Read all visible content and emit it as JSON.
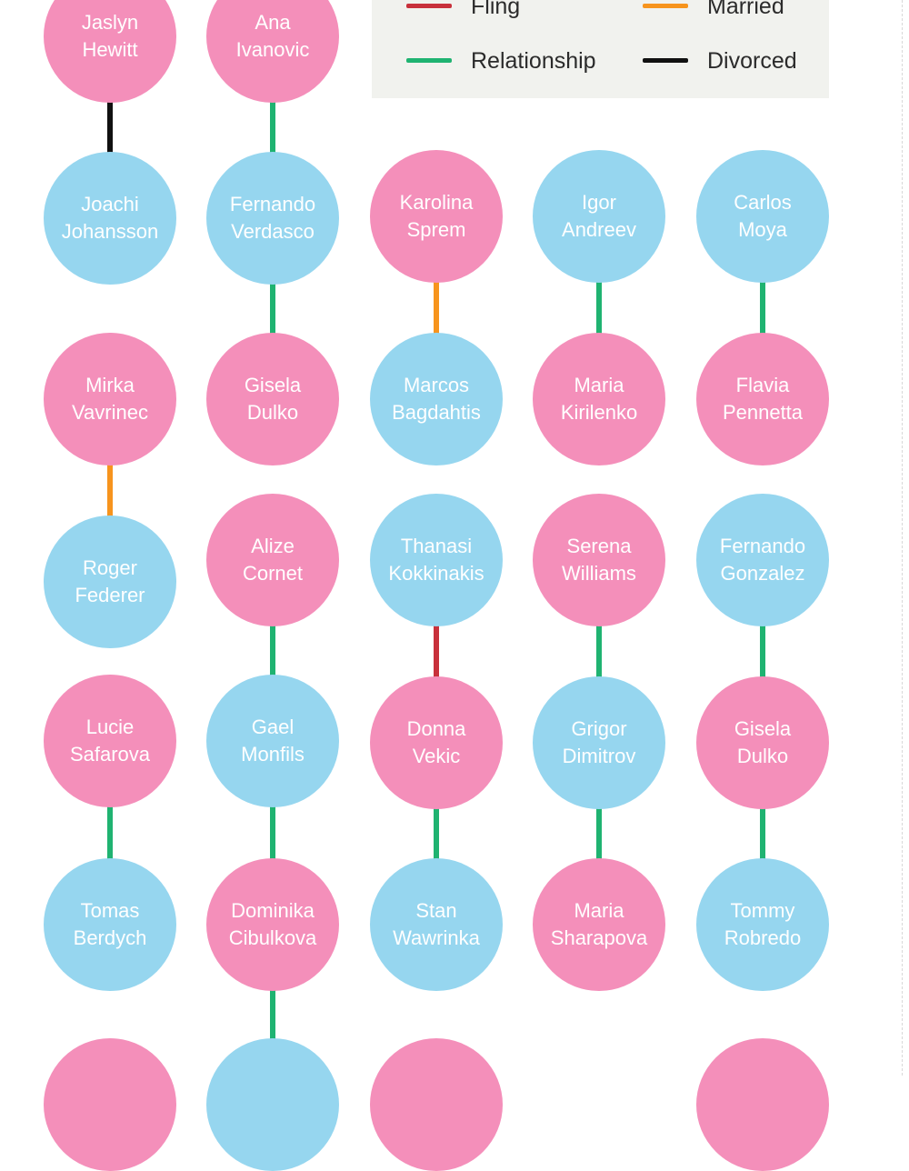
{
  "legend": {
    "items": [
      {
        "label": "Fling",
        "color": "#c8313b"
      },
      {
        "label": "Married",
        "color": "#f7941d"
      },
      {
        "label": "Relationship",
        "color": "#1fb371"
      },
      {
        "label": "Divorced",
        "color": "#111111"
      }
    ]
  },
  "colors": {
    "female": "#f48fba",
    "male": "#96d6ef"
  },
  "nodes": [
    {
      "first": "Jaslyn",
      "last": "Hewitt",
      "gender": "female"
    },
    {
      "first": "Ana",
      "last": "Ivanovic",
      "gender": "female"
    },
    {
      "first": "Joachi",
      "last": "Johansson",
      "gender": "male"
    },
    {
      "first": "Fernando",
      "last": "Verdasco",
      "gender": "male"
    },
    {
      "first": "Karolina",
      "last": "Sprem",
      "gender": "female"
    },
    {
      "first": "Igor",
      "last": "Andreev",
      "gender": "male"
    },
    {
      "first": "Carlos",
      "last": "Moya",
      "gender": "male"
    },
    {
      "first": "Mirka",
      "last": "Vavrinec",
      "gender": "female"
    },
    {
      "first": "Gisela",
      "last": "Dulko",
      "gender": "female"
    },
    {
      "first": "Marcos",
      "last": "Bagdahtis",
      "gender": "male"
    },
    {
      "first": "Maria",
      "last": "Kirilenko",
      "gender": "female"
    },
    {
      "first": "Flavia",
      "last": "Pennetta",
      "gender": "female"
    },
    {
      "first": "Roger",
      "last": "Federer",
      "gender": "male"
    },
    {
      "first": "Alize",
      "last": "Cornet",
      "gender": "female"
    },
    {
      "first": "Thanasi",
      "last": "Kokkinakis",
      "gender": "male"
    },
    {
      "first": "Serena",
      "last": "Williams",
      "gender": "female"
    },
    {
      "first": "Fernando",
      "last": "Gonzalez",
      "gender": "male"
    },
    {
      "first": "Lucie",
      "last": "Safarova",
      "gender": "female"
    },
    {
      "first": "Gael",
      "last": "Monfils",
      "gender": "male"
    },
    {
      "first": "Donna",
      "last": "Vekic",
      "gender": "female"
    },
    {
      "first": "Grigor",
      "last": "Dimitrov",
      "gender": "male"
    },
    {
      "first": "Gisela",
      "last": "Dulko",
      "gender": "female"
    },
    {
      "first": "Tomas",
      "last": "Berdych",
      "gender": "male"
    },
    {
      "first": "Dominika",
      "last": "Cibulkova",
      "gender": "female"
    },
    {
      "first": "Stan",
      "last": "Wawrinka",
      "gender": "male"
    },
    {
      "first": "Maria",
      "last": "Sharapova",
      "gender": "female"
    },
    {
      "first": "Tommy",
      "last": "Robredo",
      "gender": "male"
    },
    {
      "first": "",
      "last": "",
      "gender": "female"
    },
    {
      "first": "",
      "last": "",
      "gender": "male"
    },
    {
      "first": "",
      "last": "",
      "gender": "female"
    },
    {
      "first": "",
      "last": "",
      "gender": "female"
    }
  ],
  "edges": [
    {
      "from": 0,
      "to": 2,
      "type": "Divorced"
    },
    {
      "from": 1,
      "to": 3,
      "type": "Relationship"
    },
    {
      "from": 3,
      "to": 8,
      "type": "Relationship"
    },
    {
      "from": 4,
      "to": 9,
      "type": "Married"
    },
    {
      "from": 5,
      "to": 10,
      "type": "Relationship"
    },
    {
      "from": 6,
      "to": 11,
      "type": "Relationship"
    },
    {
      "from": 7,
      "to": 12,
      "type": "Married"
    },
    {
      "from": 13,
      "to": 18,
      "type": "Relationship"
    },
    {
      "from": 14,
      "to": 19,
      "type": "Fling"
    },
    {
      "from": 15,
      "to": 20,
      "type": "Relationship"
    },
    {
      "from": 16,
      "to": 21,
      "type": "Relationship"
    },
    {
      "from": 17,
      "to": 22,
      "type": "Relationship"
    },
    {
      "from": 18,
      "to": 23,
      "type": "Relationship"
    },
    {
      "from": 19,
      "to": 24,
      "type": "Relationship"
    },
    {
      "from": 20,
      "to": 25,
      "type": "Relationship"
    },
    {
      "from": 21,
      "to": 26,
      "type": "Relationship"
    },
    {
      "from": 23,
      "to": 28,
      "type": "Relationship"
    }
  ]
}
